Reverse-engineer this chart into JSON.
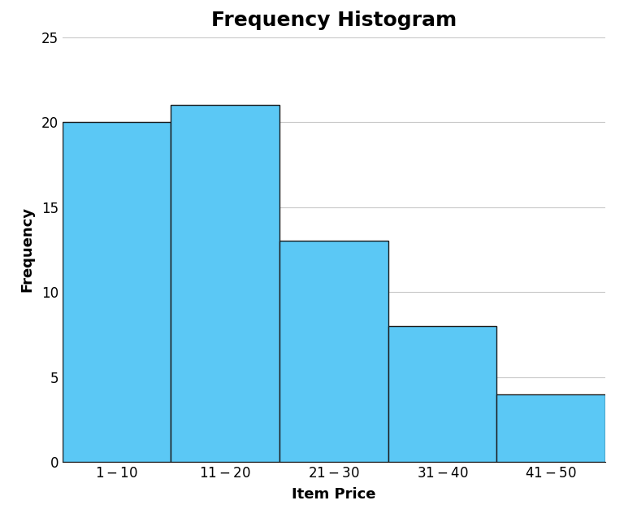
{
  "title": "Frequency Histogram",
  "xlabel": "Item Price",
  "ylabel": "Frequency",
  "categories": [
    "$1 - $10",
    "$11 - $20",
    "$21 - $30",
    "$31 - $40",
    "$41 - $50"
  ],
  "values": [
    20,
    21,
    13,
    8,
    4
  ],
  "bar_color": "#5BC8F5",
  "bar_edge_color": "#1a1a1a",
  "bar_edge_width": 1.0,
  "ylim": [
    0,
    25
  ],
  "yticks": [
    0,
    5,
    10,
    15,
    20,
    25
  ],
  "title_fontsize": 18,
  "title_fontweight": "bold",
  "axis_label_fontsize": 13,
  "axis_label_fontweight": "bold",
  "tick_fontsize": 12,
  "grid_color": "#c8c8c8",
  "grid_linewidth": 0.8,
  "background_color": "#ffffff"
}
